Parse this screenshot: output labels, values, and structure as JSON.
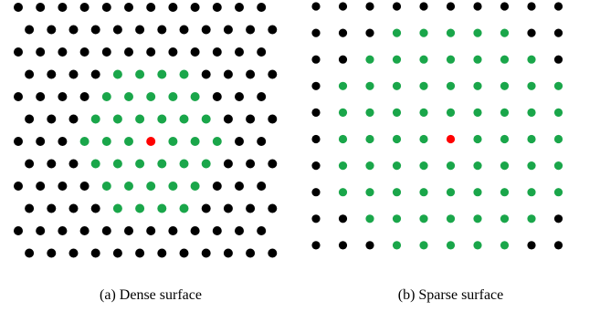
{
  "colors": {
    "default": "#000000",
    "neighbor": "#1aa64a",
    "center": "#ff0000"
  },
  "panels": {
    "dense": {
      "caption": "(a) Dense surface",
      "lattice": "hexagonal",
      "rows": 12,
      "cols": 12,
      "neighbor_radius_in_spacings": 3.6
    },
    "sparse": {
      "caption": "(b) Sparse surface",
      "lattice": "square",
      "rows": 10,
      "cols": 10,
      "neighbor_radius_in_spacings": 4.5
    }
  }
}
